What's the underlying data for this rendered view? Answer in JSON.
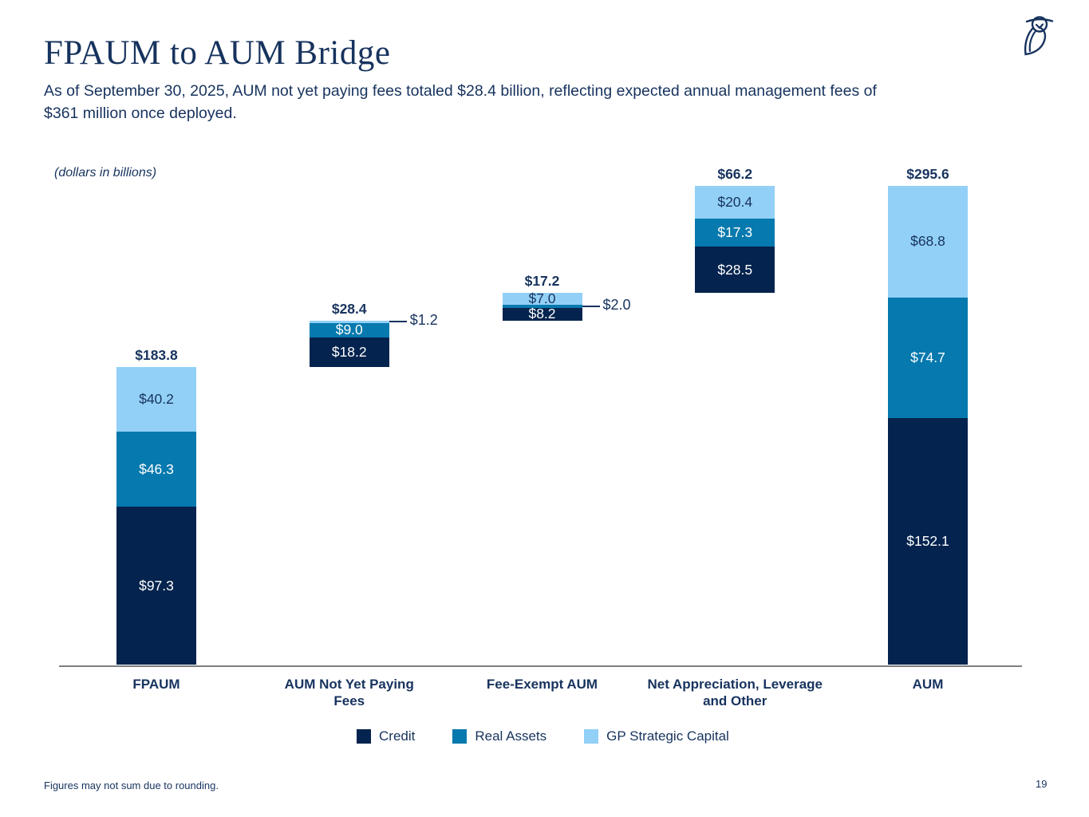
{
  "slide": {
    "title": "FPAUM to AUM Bridge",
    "subtitle_line1": "As of September 30, 2025, AUM not yet paying fees totaled $28.4 billion, reflecting expected annual management fees of",
    "subtitle_line2": "$361 million once deployed.",
    "footnote": "Figures may not sum due to rounding.",
    "page_number": "19",
    "logo_icon": "blue-owl-logo"
  },
  "colors": {
    "text_navy": "#17335e",
    "credit": "#04234e",
    "real_assets": "#0679ae",
    "gp_strategic_capital": "#92d0f7",
    "axis_line": "#7f7f7f",
    "background": "#ffffff",
    "label_on_dark": "#ffffff"
  },
  "chart_data": {
    "type": "bar",
    "subtype": "stacked_waterfall",
    "unit_note": "(dollars in billions)",
    "grid": false,
    "legend_position": "bottom",
    "legend": [
      {
        "name": "Credit",
        "color": "#04234e"
      },
      {
        "name": "Real Assets",
        "color": "#0679ae"
      },
      {
        "name": "GP Strategic Capital",
        "color": "#92d0f7"
      }
    ],
    "bars": [
      {
        "category": "FPAUM",
        "category_lines": [
          "FPAUM"
        ],
        "total": 183.8,
        "total_label": "$183.8",
        "is_total": true,
        "segments": [
          {
            "series": "Credit",
            "value": 97.3,
            "label": "$97.3"
          },
          {
            "series": "Real Assets",
            "value": 46.3,
            "label": "$46.3"
          },
          {
            "series": "GP Strategic Capital",
            "value": 40.2,
            "label": "$40.2"
          }
        ]
      },
      {
        "category": "AUM Not Yet Paying Fees",
        "category_lines": [
          "AUM Not Yet Paying",
          "Fees"
        ],
        "total": 28.4,
        "total_label": "$28.4",
        "is_total": false,
        "segments": [
          {
            "series": "Credit",
            "value": 18.2,
            "label": "$18.2"
          },
          {
            "series": "Real Assets",
            "value": 9.0,
            "label": "$9.0"
          },
          {
            "series": "GP Strategic Capital",
            "value": 1.2,
            "label": "$1.2",
            "label_outside": true
          }
        ]
      },
      {
        "category": "Fee-Exempt AUM",
        "category_lines": [
          "Fee-Exempt AUM"
        ],
        "total": 17.2,
        "total_label": "$17.2",
        "is_total": false,
        "segments": [
          {
            "series": "Credit",
            "value": 8.2,
            "label": "$8.2"
          },
          {
            "series": "Real Assets",
            "value": 2.0,
            "label": "$2.0",
            "label_outside": true
          },
          {
            "series": "GP Strategic Capital",
            "value": 7.0,
            "label": "$7.0"
          }
        ]
      },
      {
        "category": "Net Appreciation, Leverage and Other",
        "category_lines": [
          "Net Appreciation, Leverage",
          "and Other"
        ],
        "total": 66.2,
        "total_label": "$66.2",
        "is_total": false,
        "segments": [
          {
            "series": "Credit",
            "value": 28.5,
            "label": "$28.5"
          },
          {
            "series": "Real Assets",
            "value": 17.3,
            "label": "$17.3"
          },
          {
            "series": "GP Strategic Capital",
            "value": 20.4,
            "label": "$20.4"
          }
        ]
      },
      {
        "category": "AUM",
        "category_lines": [
          "AUM"
        ],
        "total": 295.6,
        "total_label": "$295.6",
        "is_total": true,
        "segments": [
          {
            "series": "Credit",
            "value": 152.1,
            "label": "$152.1"
          },
          {
            "series": "Real Assets",
            "value": 74.7,
            "label": "$74.7"
          },
          {
            "series": "GP Strategic Capital",
            "value": 68.8,
            "label": "$68.8"
          }
        ]
      }
    ]
  }
}
